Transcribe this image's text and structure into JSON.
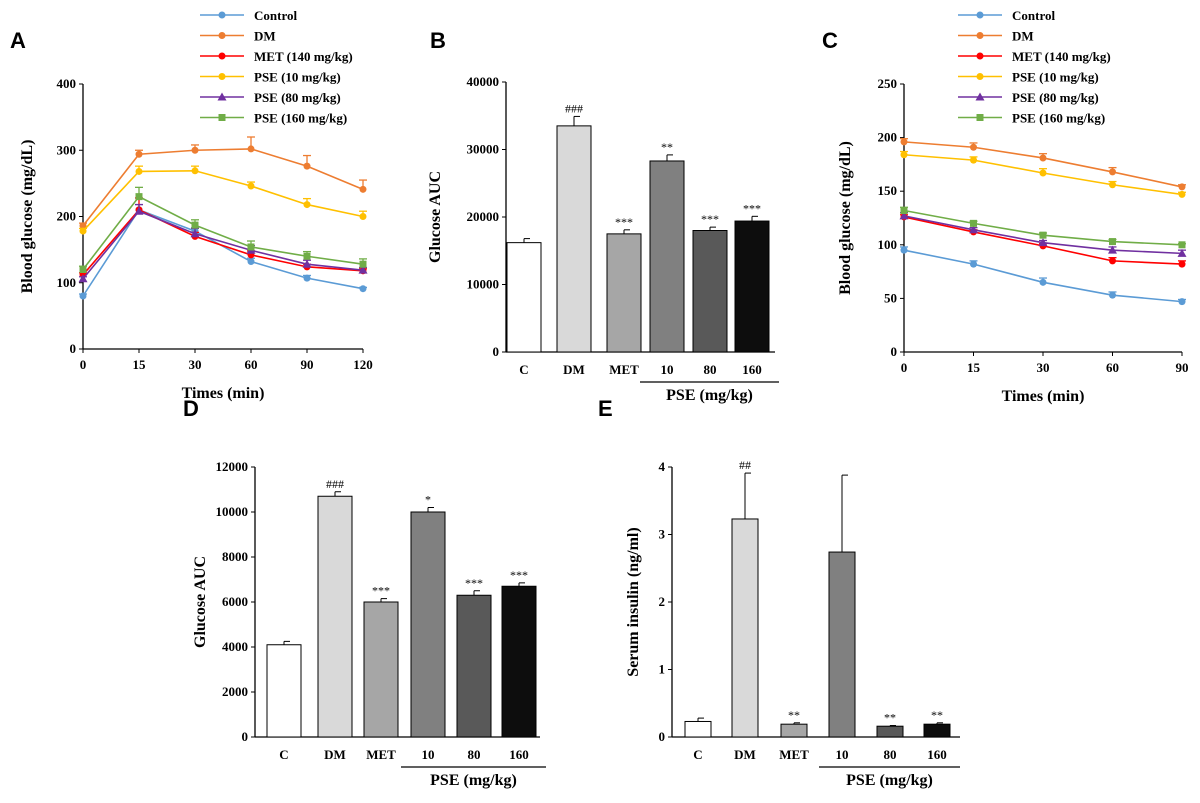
{
  "chart_data": [
    {
      "panel": "A",
      "type": "line",
      "x": [
        "0",
        "15",
        "30",
        "60",
        "90",
        "120"
      ],
      "xlabel": "Times (min)",
      "ylabel": "Blood glucose (mg/dL)",
      "ylim": [
        0,
        400
      ],
      "yticks": [
        "0",
        "100",
        "200",
        "300",
        "400"
      ],
      "legend_position": "top",
      "series": [
        {
          "name": "Control",
          "color": "#5b9bd5",
          "marker": "circle",
          "values": [
            80,
            210,
            178,
            132,
            107,
            91
          ],
          "err": [
            3,
            8,
            5,
            5,
            4,
            2
          ]
        },
        {
          "name": "DM",
          "color": "#ed7d31",
          "marker": "circle",
          "values": [
            186,
            294,
            300,
            302,
            276,
            241
          ],
          "err": [
            4,
            6,
            8,
            18,
            16,
            14
          ]
        },
        {
          "name": "MET (140 mg/kg)",
          "color": "#ff0000",
          "marker": "circle",
          "values": [
            112,
            210,
            170,
            142,
            124,
            118
          ],
          "err": [
            3,
            18,
            6,
            6,
            4,
            3
          ]
        },
        {
          "name": "PSE (10 mg/kg)",
          "color": "#ffc000",
          "marker": "circle",
          "values": [
            178,
            268,
            269,
            246,
            218,
            200
          ],
          "err": [
            4,
            8,
            7,
            6,
            9,
            8
          ]
        },
        {
          "name": "PSE (80 mg/kg)",
          "color": "#7030a0",
          "marker": "triangle",
          "values": [
            106,
            208,
            174,
            149,
            128,
            119
          ],
          "err": [
            3,
            10,
            8,
            7,
            6,
            4
          ]
        },
        {
          "name": "PSE (160 mg/kg)",
          "color": "#70ad47",
          "marker": "square",
          "values": [
            120,
            230,
            187,
            154,
            140,
            128
          ],
          "err": [
            5,
            14,
            8,
            9,
            7,
            8
          ]
        }
      ]
    },
    {
      "panel": "B",
      "type": "bar",
      "categories": [
        "C",
        "DM",
        "MET",
        "10",
        "80",
        "160"
      ],
      "group_label": "PSE (mg/kg)",
      "ylabel": "Glucose AUC",
      "ylim": [
        0,
        40000
      ],
      "yticks": [
        "0",
        "10000",
        "20000",
        "30000",
        "40000"
      ],
      "values": [
        16200,
        33500,
        17500,
        28300,
        18000,
        19400
      ],
      "err": [
        600,
        1400,
        600,
        900,
        500,
        700
      ],
      "annotations": [
        "",
        "###",
        "***",
        "**",
        "***",
        "***"
      ],
      "colors": [
        "#ffffff",
        "#d9d9d9",
        "#a6a6a6",
        "#808080",
        "#595959",
        "#0d0d0d"
      ]
    },
    {
      "panel": "C",
      "type": "line",
      "x": [
        "0",
        "15",
        "30",
        "60",
        "90"
      ],
      "xlabel": "Times (min)",
      "ylabel": "Blood glucose (mg/dL)",
      "ylim": [
        0,
        250
      ],
      "yticks": [
        "0",
        "50",
        "100",
        "150",
        "200",
        "250"
      ],
      "legend_position": "top",
      "series": [
        {
          "name": "Control",
          "color": "#5b9bd5",
          "marker": "circle",
          "values": [
            95,
            82,
            65,
            53,
            47
          ],
          "err": [
            3,
            3,
            4,
            3,
            2
          ]
        },
        {
          "name": "DM",
          "color": "#ed7d31",
          "marker": "circle",
          "values": [
            196,
            191,
            181,
            168,
            154
          ],
          "err": [
            3,
            4,
            4,
            4,
            2
          ]
        },
        {
          "name": "MET (140 mg/kg)",
          "color": "#ff0000",
          "marker": "circle",
          "values": [
            126,
            112,
            99,
            85,
            82
          ],
          "err": [
            2,
            2,
            2,
            3,
            3
          ]
        },
        {
          "name": "PSE (10 mg/kg)",
          "color": "#ffc000",
          "marker": "circle",
          "values": [
            184,
            179,
            167,
            156,
            147
          ],
          "err": [
            3,
            3,
            4,
            3,
            2
          ]
        },
        {
          "name": "PSE (80 mg/kg)",
          "color": "#7030a0",
          "marker": "triangle",
          "values": [
            127,
            114,
            102,
            95,
            92
          ],
          "err": [
            3,
            2,
            2,
            3,
            3
          ]
        },
        {
          "name": "PSE (160 mg/kg)",
          "color": "#70ad47",
          "marker": "square",
          "values": [
            132,
            120,
            109,
            103,
            100
          ],
          "err": [
            3,
            2,
            2,
            2,
            1
          ]
        }
      ]
    },
    {
      "panel": "D",
      "type": "bar",
      "categories": [
        "C",
        "DM",
        "MET",
        "10",
        "80",
        "160"
      ],
      "group_label": "PSE (mg/kg)",
      "ylabel": "Glucose AUC",
      "ylim": [
        0,
        12000
      ],
      "yticks": [
        "0",
        "2000",
        "4000",
        "6000",
        "8000",
        "10000",
        "12000"
      ],
      "values": [
        4100,
        10700,
        6000,
        10000,
        6300,
        6700
      ],
      "err": [
        150,
        200,
        150,
        200,
        200,
        150
      ],
      "annotations": [
        "",
        "###",
        "***",
        "*",
        "***",
        "***"
      ],
      "colors": [
        "#ffffff",
        "#d9d9d9",
        "#a6a6a6",
        "#808080",
        "#595959",
        "#0d0d0d"
      ]
    },
    {
      "panel": "E",
      "type": "bar",
      "categories": [
        "C",
        "DM",
        "MET",
        "10",
        "80",
        "160"
      ],
      "group_label": "PSE (mg/kg)",
      "ylabel": "Serum insulin (ng/ml)",
      "ylim": [
        0,
        4
      ],
      "yticks": [
        "0",
        "1",
        "2",
        "3",
        "4"
      ],
      "values": [
        0.23,
        3.23,
        0.19,
        2.74,
        0.16,
        0.19
      ],
      "err": [
        0.05,
        0.68,
        0.02,
        1.14,
        0.01,
        0.02
      ],
      "annotations": [
        "",
        "##",
        "**",
        "",
        "**",
        "**"
      ],
      "colors": [
        "#ffffff",
        "#d9d9d9",
        "#a6a6a6",
        "#808080",
        "#595959",
        "#0d0d0d"
      ]
    }
  ]
}
